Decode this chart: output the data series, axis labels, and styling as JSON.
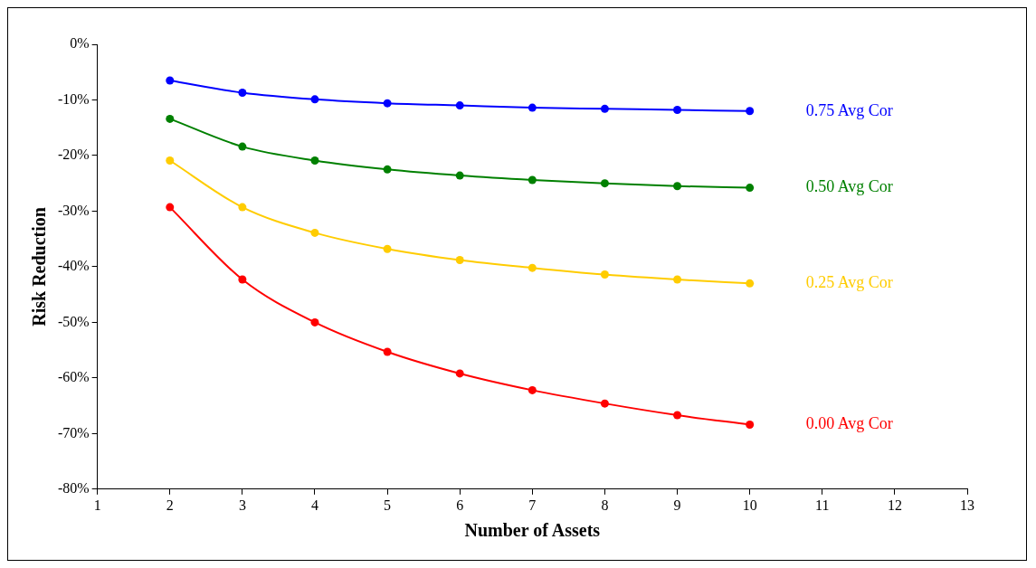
{
  "chart_data": {
    "type": "line",
    "xlabel": "Number of Assets",
    "ylabel": "Risk Reduction",
    "x": [
      2,
      3,
      4,
      5,
      6,
      7,
      8,
      9,
      10
    ],
    "series": [
      {
        "name": "0.75 Avg Cor",
        "color": "#0000ff",
        "values": [
          -6.5,
          -8.7,
          -9.9,
          -10.6,
          -11.0,
          -11.4,
          -11.6,
          -11.8,
          -12.0
        ]
      },
      {
        "name": "0.50 Avg Cor",
        "color": "#008000",
        "values": [
          -13.4,
          -18.4,
          -20.9,
          -22.5,
          -23.6,
          -24.4,
          -25.0,
          -25.5,
          -25.8
        ]
      },
      {
        "name": "0.25 Avg Cor",
        "color": "#ffcc00",
        "values": [
          -20.9,
          -29.3,
          -33.9,
          -36.8,
          -38.8,
          -40.2,
          -41.4,
          -42.3,
          -43.0
        ]
      },
      {
        "name": "0.00 Avg Cor",
        "color": "#ff0000",
        "values": [
          -29.3,
          -42.3,
          -50.0,
          -55.3,
          -59.2,
          -62.2,
          -64.6,
          -66.7,
          -68.4
        ]
      }
    ],
    "xlim": [
      1,
      13
    ],
    "xticks": [
      1,
      2,
      3,
      4,
      5,
      6,
      7,
      8,
      9,
      10,
      11,
      12,
      13
    ],
    "ylim": [
      -80,
      0
    ],
    "yticks": [
      {
        "value": -80,
        "label": "-80%"
      },
      {
        "value": -70,
        "label": "-70%"
      },
      {
        "value": -60,
        "label": "-60%"
      },
      {
        "value": -50,
        "label": "-50%"
      },
      {
        "value": -40,
        "label": "-40%"
      },
      {
        "value": -30,
        "label": "-30%"
      },
      {
        "value": -20,
        "label": "-20%"
      },
      {
        "value": -10,
        "label": "-10%"
      },
      {
        "value": 0,
        "label": "0%"
      }
    ],
    "grid": false,
    "legend": false,
    "marker": "circle",
    "line_style": "solid"
  }
}
